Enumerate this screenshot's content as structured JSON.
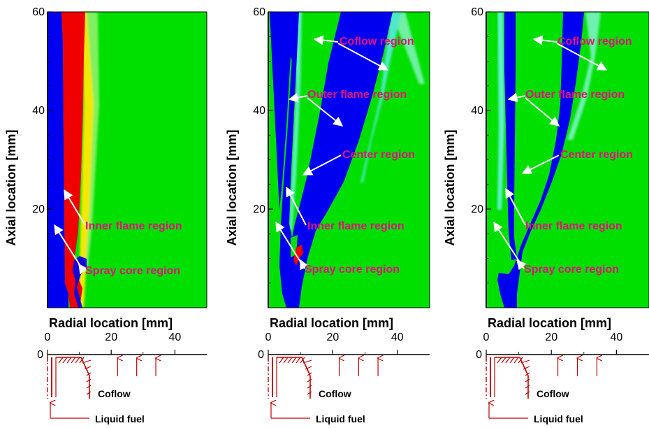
{
  "colors": {
    "background_field": "#00e000",
    "blue_region": "#0000f0",
    "red_region": "#f00000",
    "annotation_text": "#e3127e",
    "nozzle_lines": "#c00000"
  },
  "chart_data": [
    {
      "type": "heatmap",
      "panel": "left",
      "xlabel": "Radial location [mm]",
      "ylabel": "Axial location [mm]",
      "xlim": [
        0,
        50
      ],
      "ylim": [
        0,
        60
      ],
      "xticks": [
        "0",
        "20",
        "40"
      ],
      "yticks": [
        "0",
        "20",
        "40",
        "60"
      ],
      "annotations": [
        "Inner flame region",
        "Spray core region"
      ],
      "regions": [
        {
          "kind": "blue",
          "x_range_mm": [
            0,
            4
          ],
          "y_range_mm": [
            8,
            60
          ]
        },
        {
          "kind": "red",
          "x_range_mm": [
            4,
            12
          ],
          "y_range_mm": [
            8,
            60
          ]
        }
      ],
      "nozzle_labels": [
        "Coflow",
        "Liquid fuel"
      ]
    },
    {
      "type": "heatmap",
      "panel": "middle",
      "xlabel": "Radial location [mm]",
      "ylabel": "Axial location [mm]",
      "xlim": [
        0,
        50
      ],
      "ylim": [
        0,
        60
      ],
      "xticks": [
        "0",
        "20",
        "40"
      ],
      "yticks": [
        "0",
        "20",
        "40",
        "60"
      ],
      "annotations": [
        "Coflow region",
        "Outer flame region",
        "Center region",
        "Inner flame region",
        "Spray core region"
      ],
      "nozzle_labels": [
        "Coflow",
        "Liquid fuel"
      ]
    },
    {
      "type": "heatmap",
      "panel": "right",
      "xlabel": "Radial location [mm]",
      "ylabel": "Axial location [mm]",
      "xlim": [
        0,
        50
      ],
      "ylim": [
        0,
        60
      ],
      "xticks": [
        "0",
        "20",
        "40"
      ],
      "yticks": [
        "0",
        "20",
        "40",
        "60"
      ],
      "annotations": [
        "Coflow region",
        "Outer flame region",
        "Center region",
        "Inner flame region",
        "Spray core region"
      ],
      "nozzle_labels": [
        "Coflow",
        "Liquid fuel"
      ]
    }
  ]
}
